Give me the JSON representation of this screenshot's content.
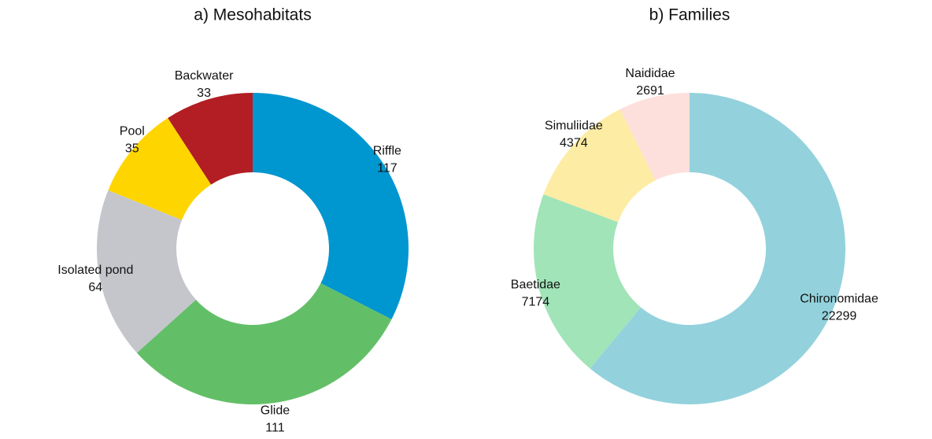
{
  "chart_data": [
    {
      "type": "donut",
      "title": "a) Mesohabitats",
      "categories": [
        "Riffle",
        "Glide",
        "Isolated pond",
        "Pool",
        "Backwater"
      ],
      "values": [
        117,
        111,
        64,
        35,
        33
      ],
      "colors": [
        "#0096d0",
        "#63bf67",
        "#c4c6cc",
        "#ffd500",
        "#b21e23"
      ]
    },
    {
      "type": "donut",
      "title": "b) Families",
      "categories": [
        "Chironomidae",
        "Baetidae",
        "Simuliidae",
        "Naididae"
      ],
      "values": [
        22299,
        7174,
        4374,
        2691
      ],
      "colors": [
        "#93d2dc",
        "#a0e4b8",
        "#fdeca4",
        "#fde0dc"
      ]
    }
  ]
}
